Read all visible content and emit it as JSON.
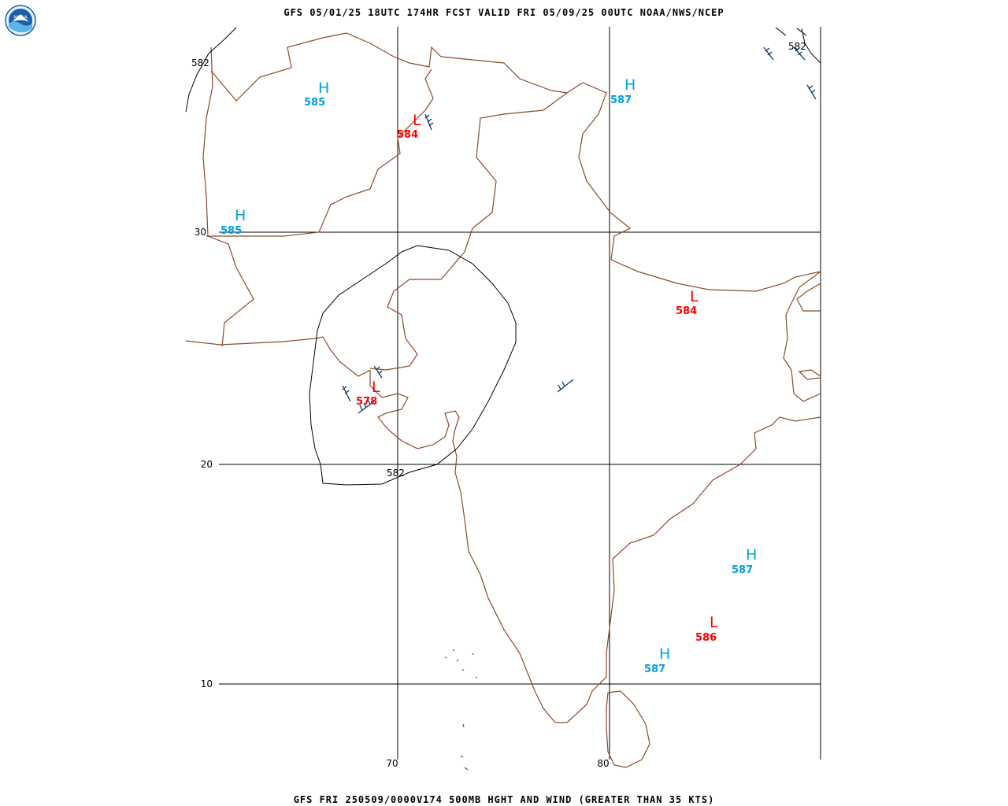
{
  "header": {
    "title": "GFS 05/01/25 18UTC 174HR FCST VALID FRI 05/09/25 00UTC NOAA/NWS/NCEP",
    "logo_text": "NOAA"
  },
  "footer": {
    "title": "GFS FRI 250509/0000V174 500MB HGHT AND WIND (GREATER THAN 35 KTS)"
  },
  "colors": {
    "high": "#00a0e0",
    "low": "#ff0000",
    "coast": "#8b4a2b",
    "contour": "#000000",
    "barb": "#0a3a6a"
  },
  "grid": {
    "lat_labels": [
      "30",
      "20",
      "10"
    ],
    "lon_labels": [
      "70",
      "80"
    ]
  },
  "contour_labels": [
    "582",
    "582",
    "582"
  ],
  "centers": [
    {
      "type": "H",
      "value": "585"
    },
    {
      "type": "L",
      "value": "584"
    },
    {
      "type": "H",
      "value": "587"
    },
    {
      "type": "H",
      "value": "585"
    },
    {
      "type": "L",
      "value": "584"
    },
    {
      "type": "L",
      "value": "578"
    },
    {
      "type": "H",
      "value": "587"
    },
    {
      "type": "L",
      "value": "586"
    },
    {
      "type": "H",
      "value": "587"
    }
  ]
}
